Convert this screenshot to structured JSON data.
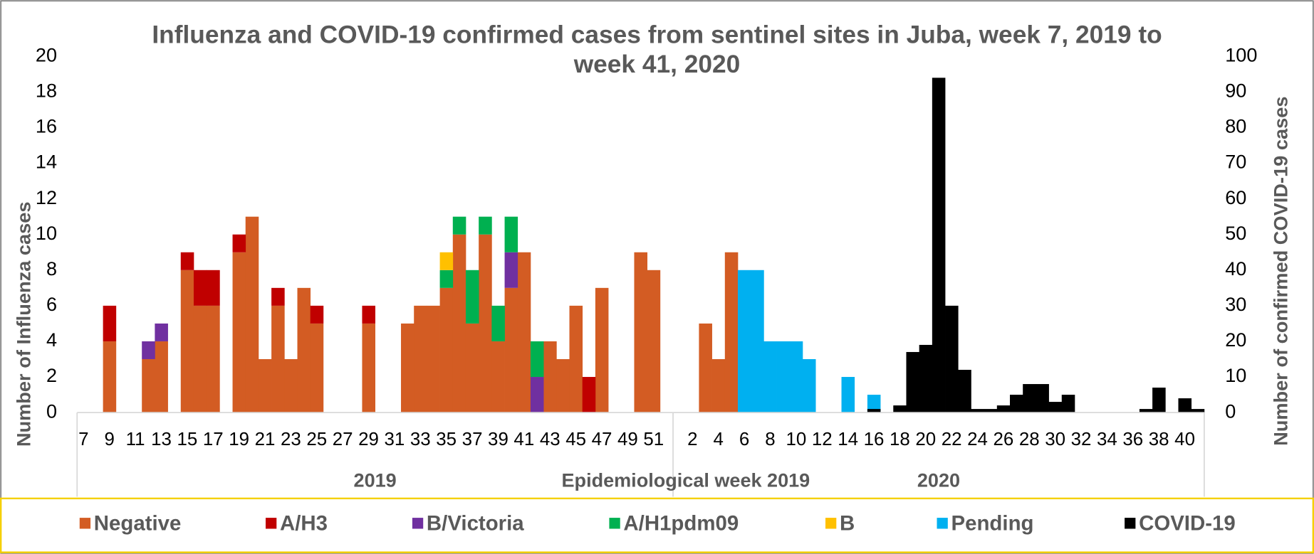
{
  "chart_data": {
    "type": "bar",
    "stacked": true,
    "title": "Influenza and COVID-19 confirmed cases from sentinel sites in Juba, week 7, 2019 to week 41, 2020",
    "y_label": "Number of Influenza cases",
    "y2_label": "Number of confirmed COVID-19 cases",
    "x_label": "Epidemiological week 2019",
    "groups": [
      "2019",
      "2020"
    ],
    "legend": "bottom",
    "grid": false,
    "ylim": [
      0,
      20
    ],
    "yticks": [
      0,
      2,
      4,
      6,
      8,
      10,
      12,
      14,
      16,
      18,
      20
    ],
    "y2lim": [
      0,
      100
    ],
    "y2ticks": [
      0,
      10,
      20,
      30,
      40,
      50,
      60,
      70,
      80,
      90,
      100
    ],
    "categories": [
      7,
      null,
      9,
      null,
      11,
      null,
      13,
      null,
      15,
      null,
      17,
      null,
      19,
      null,
      21,
      null,
      23,
      null,
      25,
      null,
      27,
      null,
      29,
      null,
      31,
      null,
      33,
      null,
      35,
      null,
      37,
      null,
      39,
      null,
      41,
      null,
      43,
      null,
      45,
      null,
      47,
      null,
      49,
      null,
      51,
      null,
      null,
      2,
      null,
      4,
      null,
      6,
      null,
      8,
      null,
      10,
      null,
      12,
      null,
      14,
      null,
      16,
      null,
      18,
      null,
      20,
      null,
      22,
      null,
      24,
      null,
      26,
      null,
      28,
      null,
      30,
      null,
      32,
      null,
      34,
      null,
      36,
      null,
      38,
      null,
      40,
      null
    ],
    "series": [
      {
        "name": "Negative",
        "color": "#d35c23",
        "values": [
          0,
          0,
          4,
          0,
          0,
          3,
          4,
          0,
          8,
          6,
          6,
          0,
          9,
          11,
          3,
          6,
          3,
          7,
          5,
          0,
          0,
          0,
          5,
          0,
          0,
          5,
          6,
          6,
          7,
          10,
          5,
          10,
          4,
          7,
          9,
          0,
          4,
          3,
          6,
          0,
          7,
          0,
          0,
          9,
          8,
          0,
          0,
          0,
          5,
          3,
          9,
          0,
          0,
          0,
          0,
          0,
          0,
          0,
          0,
          0,
          0,
          0,
          0,
          0,
          0,
          0,
          0,
          0,
          0,
          0,
          0,
          0,
          0,
          0,
          0,
          0,
          0,
          0,
          0,
          0,
          0,
          0,
          0,
          0,
          0,
          0,
          0
        ]
      },
      {
        "name": "A/H3",
        "color": "#c00000",
        "values": [
          0,
          0,
          2,
          0,
          0,
          0,
          0,
          0,
          1,
          2,
          2,
          0,
          1,
          0,
          0,
          1,
          0,
          0,
          1,
          0,
          0,
          0,
          1,
          0,
          0,
          0,
          0,
          0,
          0,
          0,
          0,
          0,
          0,
          0,
          0,
          0,
          0,
          0,
          0,
          2,
          0,
          0,
          0,
          0,
          0,
          0,
          0,
          0,
          0,
          0,
          0,
          0,
          0,
          0,
          0,
          0,
          0,
          0,
          0,
          0,
          0,
          0,
          0,
          0,
          0,
          0,
          0,
          0,
          0,
          0,
          0,
          0,
          0,
          0,
          0,
          0,
          0,
          0,
          0,
          0,
          0,
          0,
          0,
          0,
          0,
          0,
          0
        ]
      },
      {
        "name": "B/Victoria",
        "color": "#7030a0",
        "values": [
          0,
          0,
          0,
          0,
          0,
          1,
          1,
          0,
          0,
          0,
          0,
          0,
          0,
          0,
          0,
          0,
          0,
          0,
          0,
          0,
          0,
          0,
          0,
          0,
          0,
          0,
          0,
          0,
          0,
          0,
          0,
          0,
          0,
          2,
          0,
          2,
          0,
          0,
          0,
          0,
          0,
          0,
          0,
          0,
          0,
          0,
          0,
          0,
          0,
          0,
          0,
          0,
          0,
          0,
          0,
          0,
          0,
          0,
          0,
          0,
          0,
          0,
          0,
          0,
          0,
          0,
          0,
          0,
          0,
          0,
          0,
          0,
          0,
          0,
          0,
          0,
          0,
          0,
          0,
          0,
          0,
          0,
          0,
          0,
          0,
          0,
          0
        ]
      },
      {
        "name": "A/H1pdm09",
        "color": "#00b050",
        "values": [
          0,
          0,
          0,
          0,
          0,
          0,
          0,
          0,
          0,
          0,
          0,
          0,
          0,
          0,
          0,
          0,
          0,
          0,
          0,
          0,
          0,
          0,
          0,
          0,
          0,
          0,
          0,
          0,
          1,
          1,
          3,
          1,
          2,
          2,
          0,
          2,
          0,
          0,
          0,
          0,
          0,
          0,
          0,
          0,
          0,
          0,
          0,
          0,
          0,
          0,
          0,
          0,
          0,
          0,
          0,
          0,
          0,
          0,
          0,
          0,
          0,
          0,
          0,
          0,
          0,
          0,
          0,
          0,
          0,
          0,
          0,
          0,
          0,
          0,
          0,
          0,
          0,
          0,
          0,
          0,
          0,
          0,
          0,
          0,
          0,
          0,
          0
        ]
      },
      {
        "name": "B",
        "color": "#ffc000",
        "values": [
          0,
          0,
          0,
          0,
          0,
          0,
          0,
          0,
          0,
          0,
          0,
          0,
          0,
          0,
          0,
          0,
          0,
          0,
          0,
          0,
          0,
          0,
          0,
          0,
          0,
          0,
          0,
          0,
          1,
          0,
          0,
          0,
          0,
          0,
          0,
          0,
          0,
          0,
          0,
          0,
          0,
          0,
          0,
          0,
          0,
          0,
          0,
          0,
          0,
          0,
          0,
          0,
          0,
          0,
          0,
          0,
          0,
          0,
          0,
          0,
          0,
          0,
          0,
          0,
          0,
          0,
          0,
          0,
          0,
          0,
          0,
          0,
          0,
          0,
          0,
          0,
          0,
          0,
          0,
          0,
          0,
          0,
          0,
          0,
          0,
          0,
          0
        ]
      },
      {
        "name": "Pending",
        "color": "#00b0f0",
        "values": [
          0,
          0,
          0,
          0,
          0,
          0,
          0,
          0,
          0,
          0,
          0,
          0,
          0,
          0,
          0,
          0,
          0,
          0,
          0,
          0,
          0,
          0,
          0,
          0,
          0,
          0,
          0,
          0,
          0,
          0,
          0,
          0,
          0,
          0,
          0,
          0,
          0,
          0,
          0,
          0,
          0,
          0,
          0,
          0,
          0,
          0,
          0,
          0,
          0,
          0,
          0,
          8,
          8,
          4,
          4,
          4,
          3,
          0,
          0,
          2,
          0,
          1,
          0,
          0,
          0,
          0,
          0,
          0,
          0,
          0,
          0,
          0,
          0,
          0,
          0,
          0,
          0,
          0,
          0,
          0,
          0,
          0,
          0,
          0,
          0,
          0,
          0
        ]
      },
      {
        "name": "COVID-19",
        "color": "#000000",
        "axis": "y2",
        "values": [
          0,
          0,
          0,
          0,
          0,
          0,
          0,
          0,
          0,
          0,
          0,
          0,
          0,
          0,
          0,
          0,
          0,
          0,
          0,
          0,
          0,
          0,
          0,
          0,
          0,
          0,
          0,
          0,
          0,
          0,
          0,
          0,
          0,
          0,
          0,
          0,
          0,
          0,
          0,
          0,
          0,
          0,
          0,
          0,
          0,
          0,
          0,
          0,
          0,
          0,
          0,
          0,
          0,
          0,
          0,
          0,
          0,
          0,
          0,
          0,
          0,
          1,
          0,
          2,
          17,
          19,
          94,
          30,
          12,
          1,
          1,
          2,
          5,
          8,
          8,
          3,
          5,
          0,
          0,
          0,
          0,
          0,
          1,
          7,
          0,
          4,
          1
        ]
      }
    ]
  }
}
